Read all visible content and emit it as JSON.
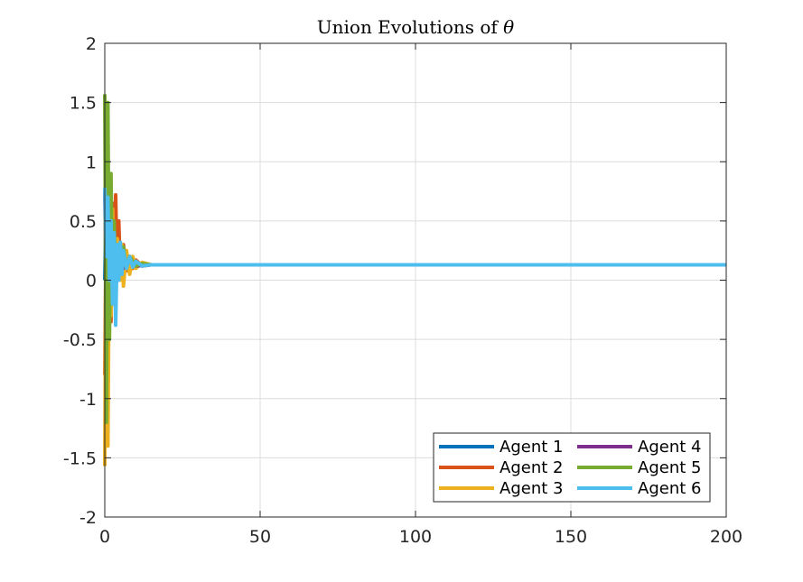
{
  "chart_data": {
    "type": "line",
    "title": "Union Evolutions of ",
    "title_symbol": "θ",
    "xlabel": "",
    "ylabel": "",
    "xlim": [
      0,
      200
    ],
    "ylim": [
      -2,
      2
    ],
    "xticks": [
      0,
      50,
      100,
      150,
      200
    ],
    "xtick_labels": [
      "0",
      "50",
      "100",
      "150",
      "200"
    ],
    "yticks": [
      2,
      1.5,
      1,
      0.5,
      0,
      -0.5,
      -1,
      -1.5,
      -2
    ],
    "ytick_labels": [
      "2",
      "1.5",
      "1",
      "0.5",
      "0",
      "-0.5",
      "-1",
      "-1.5",
      "-2"
    ],
    "grid": true,
    "legend_placement": "bottom-right",
    "legend_columns": 2,
    "series": [
      {
        "name": "Agent 1",
        "color": "#0072BD",
        "points": [
          [
            0,
            0.0
          ],
          [
            0.5,
            0.7
          ],
          [
            1,
            -0.4
          ],
          [
            1.5,
            0.5
          ],
          [
            2,
            -0.2
          ],
          [
            2.5,
            0.35
          ],
          [
            3,
            -0.1
          ],
          [
            3.5,
            0.3
          ],
          [
            4,
            0.05
          ],
          [
            5,
            0.22
          ],
          [
            6,
            0.08
          ],
          [
            7,
            0.18
          ],
          [
            8,
            0.1
          ],
          [
            10,
            0.15
          ],
          [
            12,
            0.12
          ],
          [
            15,
            0.13
          ],
          [
            20,
            0.13
          ],
          [
            200,
            0.13
          ]
        ]
      },
      {
        "name": "Agent 2",
        "color": "#D95319",
        "points": [
          [
            0,
            -0.8
          ],
          [
            0.5,
            0.6
          ],
          [
            1,
            -0.6
          ],
          [
            1.5,
            0.5
          ],
          [
            2,
            -0.35
          ],
          [
            2.5,
            0.65
          ],
          [
            3,
            -0.2
          ],
          [
            3.5,
            0.72
          ],
          [
            4,
            0.0
          ],
          [
            4.5,
            0.5
          ],
          [
            5,
            0.05
          ],
          [
            6,
            0.3
          ],
          [
            7,
            0.08
          ],
          [
            8,
            0.2
          ],
          [
            9,
            0.1
          ],
          [
            10,
            0.17
          ],
          [
            12,
            0.12
          ],
          [
            15,
            0.13
          ],
          [
            200,
            0.13
          ]
        ]
      },
      {
        "name": "Agent 3",
        "color": "#EDB120",
        "points": [
          [
            0,
            -1.57
          ],
          [
            0.5,
            1.2
          ],
          [
            1,
            -1.4
          ],
          [
            1.5,
            0.5
          ],
          [
            2,
            -0.3
          ],
          [
            2.5,
            0.6
          ],
          [
            3,
            -0.1
          ],
          [
            4,
            0.35
          ],
          [
            5,
            0.0
          ],
          [
            5.5,
            0.3
          ],
          [
            6,
            -0.05
          ],
          [
            7,
            0.25
          ],
          [
            8,
            0.05
          ],
          [
            9,
            0.2
          ],
          [
            10,
            0.1
          ],
          [
            12,
            0.15
          ],
          [
            15,
            0.13
          ],
          [
            200,
            0.13
          ]
        ]
      },
      {
        "name": "Agent 4",
        "color": "#7E2F8E",
        "points": [
          [
            0,
            0.75
          ],
          [
            0.5,
            -0.1
          ],
          [
            1,
            0.6
          ],
          [
            1.5,
            0.0
          ],
          [
            2,
            0.35
          ],
          [
            2.5,
            0.05
          ],
          [
            3,
            0.25
          ],
          [
            4,
            0.1
          ],
          [
            5,
            0.2
          ],
          [
            6,
            0.1
          ],
          [
            8,
            0.16
          ],
          [
            10,
            0.12
          ],
          [
            15,
            0.13
          ],
          [
            200,
            0.13
          ]
        ]
      },
      {
        "name": "Agent 5",
        "color": "#77AC30",
        "points": [
          [
            0,
            1.57
          ],
          [
            0.5,
            -1.2
          ],
          [
            1,
            1.5
          ],
          [
            1.5,
            -0.5
          ],
          [
            2,
            0.9
          ],
          [
            2.5,
            -0.2
          ],
          [
            3,
            0.5
          ],
          [
            3.5,
            0.0
          ],
          [
            4,
            0.3
          ],
          [
            5,
            0.1
          ],
          [
            6,
            0.28
          ],
          [
            7,
            0.1
          ],
          [
            8,
            0.2
          ],
          [
            10,
            0.12
          ],
          [
            12,
            0.14
          ],
          [
            15,
            0.13
          ],
          [
            200,
            0.13
          ]
        ]
      },
      {
        "name": "Agent 6",
        "color": "#4DBEEE",
        "points": [
          [
            0,
            0.78
          ],
          [
            0.5,
            0.2
          ],
          [
            1,
            0.7
          ],
          [
            1.5,
            0.0
          ],
          [
            2,
            0.5
          ],
          [
            2.5,
            -0.2
          ],
          [
            3,
            0.4
          ],
          [
            3.5,
            -0.38
          ],
          [
            4,
            0.3
          ],
          [
            4.5,
            0.0
          ],
          [
            5,
            0.32
          ],
          [
            5.5,
            0.05
          ],
          [
            6,
            0.25
          ],
          [
            7,
            0.1
          ],
          [
            8,
            0.2
          ],
          [
            9,
            0.11
          ],
          [
            10,
            0.16
          ],
          [
            12,
            0.12
          ],
          [
            15,
            0.13
          ],
          [
            200,
            0.13
          ]
        ]
      }
    ]
  }
}
